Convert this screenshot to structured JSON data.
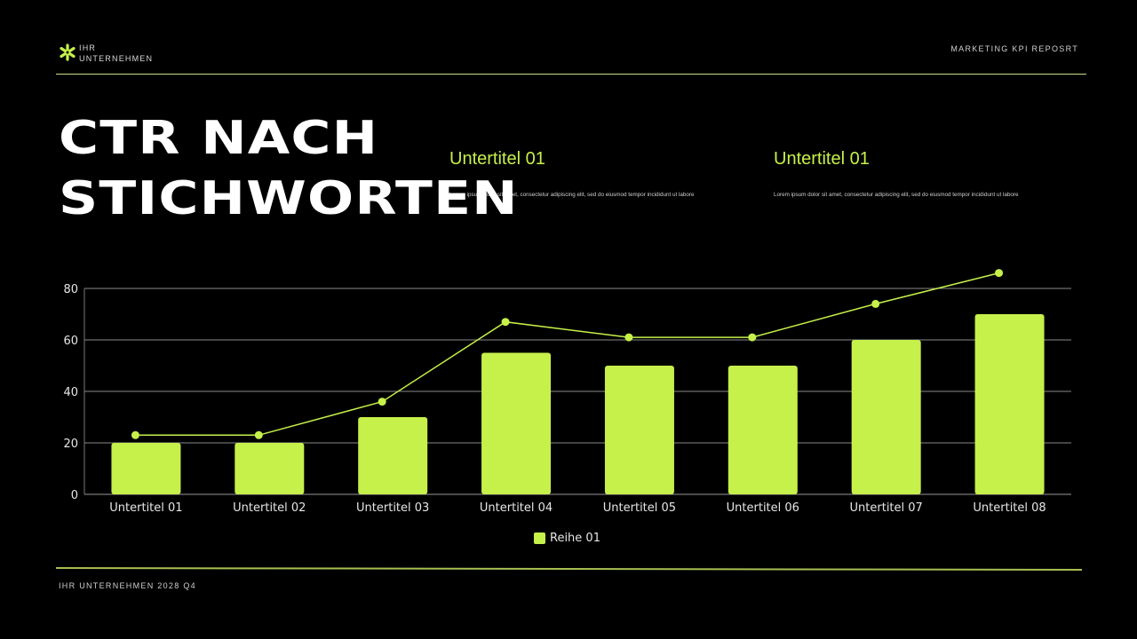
{
  "header": {
    "company": "IHR UNTERNEHMEN",
    "report_title": "MARKETING KPI REPOSRT"
  },
  "title": {
    "line1": "CTR NACH",
    "line2": "STICHWORTEN"
  },
  "subtitles": [
    {
      "heading": "Untertitel 01",
      "text": "Lorem ipsum dolor sit amet, consectetur adipiscing elit, sed do eiusmod tempor incididunt ut labore"
    },
    {
      "heading": "Untertitel 01",
      "text": "Lorem ipsum dolor sit amet, consectetur adipiscing elit, sed do eiusmod tempor incididunt ut labore"
    }
  ],
  "footer": {
    "text": "IHR UNTERNEHMEN 2028 Q4"
  },
  "colors": {
    "accent": "#c6f04a",
    "background": "#000000",
    "grid": "#8a8a8a",
    "rule": "#c7dd8a"
  },
  "chart_data": {
    "type": "bar",
    "title": "CTR NACH STICHWORTEN",
    "xlabel": "",
    "ylabel": "",
    "ylim": [
      0,
      80
    ],
    "yticks": [
      0,
      20,
      40,
      60,
      80
    ],
    "grid": true,
    "legend_position": "bottom",
    "categories": [
      "Untertitel 01",
      "Untertitel 02",
      "Untertitel 03",
      "Untertitel 04",
      "Untertitel 05",
      "Untertitel 06",
      "Untertitel 07",
      "Untertitel 08"
    ],
    "series": [
      {
        "name": "Reihe 01",
        "type": "bar",
        "values": [
          20,
          20,
          30,
          55,
          50,
          50,
          60,
          70
        ]
      },
      {
        "name": "",
        "type": "line",
        "values": [
          23,
          23,
          36,
          67,
          61,
          61,
          74,
          86
        ]
      }
    ],
    "legend": [
      "Reihe 01"
    ]
  }
}
